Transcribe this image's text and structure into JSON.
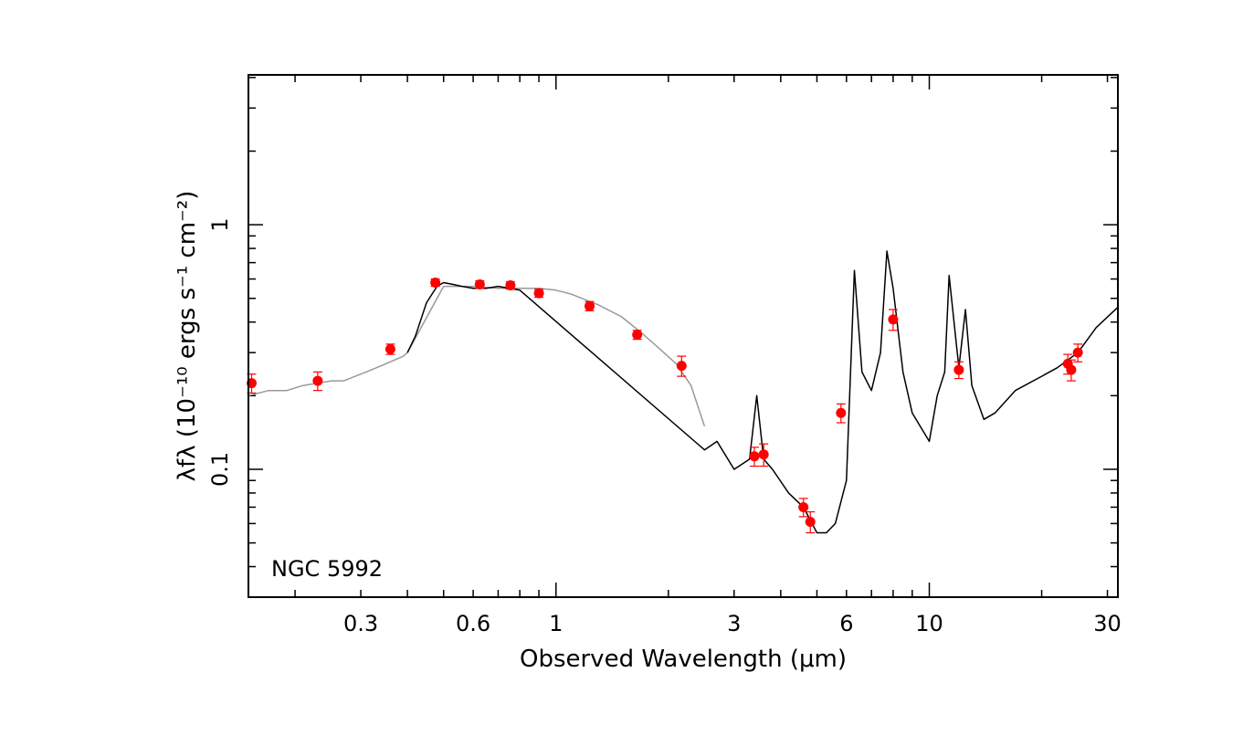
{
  "chart_data": {
    "type": "line",
    "annotation": "NGC 5992",
    "xlabel": "Observed Wavelength (μm)",
    "ylabel": "λfλ (10⁻¹⁰ ergs s⁻¹ cm⁻²)",
    "xscale": "log",
    "yscale": "log",
    "xlim": [
      0.15,
      32
    ],
    "ylim": [
      0.03,
      4.1
    ],
    "x_tick_labels": [
      "0.3",
      "0.6",
      "1",
      "3",
      "6",
      "10",
      "30"
    ],
    "y_tick_labels": [
      "0.1",
      "1"
    ],
    "grid": false,
    "colors": {
      "model_template": "#999999",
      "observed_spectrum": "#000000",
      "photometry": "#ff0000"
    },
    "series": [
      {
        "type": "line",
        "x": [
          0.15,
          0.17,
          0.19,
          0.21,
          0.23,
          0.25,
          0.27,
          0.29,
          0.31,
          0.33,
          0.35,
          0.37,
          0.39,
          0.4,
          0.5,
          0.6,
          0.7,
          0.8,
          0.9,
          1.0,
          1.1,
          1.3,
          1.5,
          1.7,
          1.9,
          2.1,
          2.3,
          2.5
        ],
        "y": [
          0.2,
          0.21,
          0.21,
          0.22,
          0.225,
          0.23,
          0.23,
          0.24,
          0.25,
          0.26,
          0.27,
          0.28,
          0.29,
          0.3,
          0.56,
          0.56,
          0.55,
          0.55,
          0.55,
          0.54,
          0.52,
          0.47,
          0.42,
          0.36,
          0.31,
          0.27,
          0.22,
          0.15
        ]
      },
      {
        "type": "line",
        "x": [
          0.4,
          0.42,
          0.45,
          0.48,
          0.5,
          0.53,
          0.56,
          0.6,
          0.65,
          0.7,
          0.8,
          2.5,
          2.7,
          3.0,
          3.3,
          3.45,
          3.6,
          3.8,
          4.2,
          4.6,
          5.0,
          5.3,
          5.6,
          6.0,
          6.3,
          6.6,
          7.0,
          7.4,
          7.7,
          8.0,
          8.5,
          9.0,
          10.0,
          10.5,
          11.0,
          11.3,
          12.0,
          12.5,
          13.0,
          14.0,
          15.0,
          17.0,
          20.0,
          22.0,
          25.0,
          28.0,
          32.0
        ],
        "y": [
          0.3,
          0.35,
          0.48,
          0.56,
          0.58,
          0.57,
          0.56,
          0.55,
          0.55,
          0.56,
          0.54,
          0.12,
          0.13,
          0.1,
          0.11,
          0.2,
          0.11,
          0.1,
          0.08,
          0.07,
          0.055,
          0.055,
          0.06,
          0.09,
          0.65,
          0.25,
          0.21,
          0.3,
          0.78,
          0.55,
          0.25,
          0.17,
          0.13,
          0.2,
          0.25,
          0.62,
          0.26,
          0.45,
          0.22,
          0.16,
          0.17,
          0.21,
          0.24,
          0.26,
          0.3,
          0.38,
          0.46
        ]
      },
      {
        "type": "scatter",
        "x": [
          0.153,
          0.23,
          0.36,
          0.475,
          0.625,
          0.755,
          0.9,
          1.23,
          1.65,
          2.17,
          3.4,
          3.6,
          4.6,
          4.8,
          5.8,
          8.0,
          12.0,
          23.5,
          24.0,
          25.0
        ],
        "y": [
          0.225,
          0.23,
          0.31,
          0.58,
          0.57,
          0.565,
          0.525,
          0.465,
          0.355,
          0.265,
          0.113,
          0.115,
          0.07,
          0.061,
          0.17,
          0.41,
          0.255,
          0.27,
          0.255,
          0.3
        ],
        "yerr": [
          0.02,
          0.02,
          0.015,
          0.02,
          0.02,
          0.02,
          0.02,
          0.02,
          0.015,
          0.025,
          0.01,
          0.012,
          0.006,
          0.006,
          0.015,
          0.04,
          0.02,
          0.025,
          0.025,
          0.025
        ]
      }
    ]
  }
}
